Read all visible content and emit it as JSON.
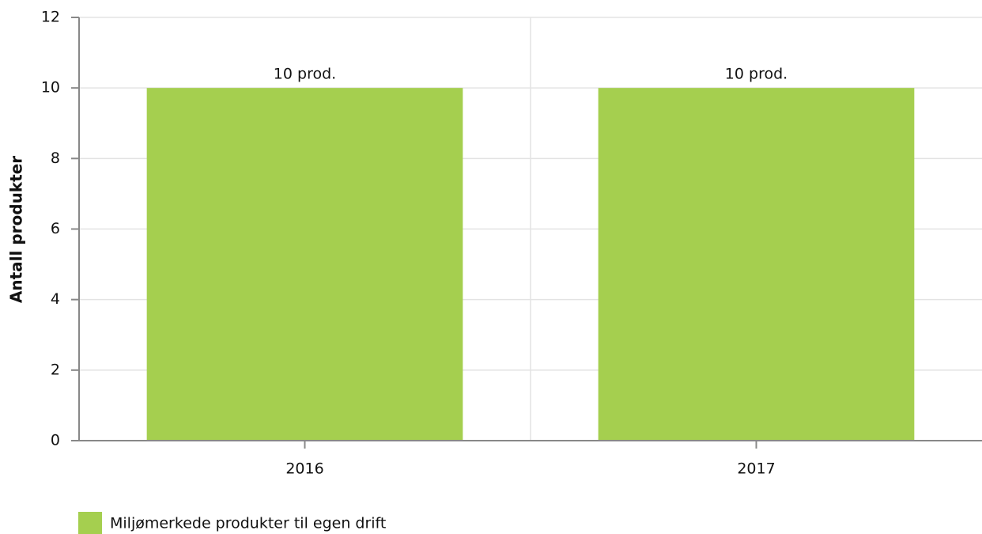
{
  "chart_data": {
    "type": "bar",
    "ylabel": "Antall produkter",
    "categories": [
      "2016",
      "2017"
    ],
    "series": [
      {
        "name": "Miljømerkede produkter til egen drift",
        "color": "#a5cf4f",
        "values": [
          10,
          10
        ],
        "value_labels": [
          "10 prod.",
          "10 prod."
        ]
      }
    ],
    "ylim": [
      0,
      12
    ],
    "yticks": [
      0,
      2,
      4,
      6,
      8,
      10,
      12
    ],
    "grid": true
  }
}
